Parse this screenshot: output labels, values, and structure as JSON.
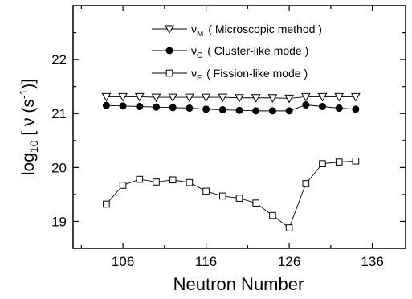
{
  "chart_data": {
    "type": "line",
    "title": "",
    "xlabel": "Neutron Number",
    "ylabel": {
      "prefix": "log",
      "sub": "10",
      "middle": " [ ν (s",
      "sup": "-1",
      "suffix": ")]"
    },
    "xlim": [
      100,
      140
    ],
    "ylim": [
      18.5,
      23.0
    ],
    "xticks": [
      106,
      116,
      126,
      136
    ],
    "yticks": [
      19,
      20,
      21,
      22
    ],
    "grid": false,
    "legend_position": "top-right",
    "x": [
      104,
      106,
      108,
      110,
      112,
      114,
      116,
      118,
      120,
      122,
      124,
      126,
      128,
      130,
      132,
      134
    ],
    "series": [
      {
        "key": "nu_M",
        "symbol": "ν",
        "sub": "M",
        "name": "( Microscopic method )",
        "marker": "triangle-down-open",
        "values": [
          21.31,
          21.31,
          21.31,
          21.3,
          21.3,
          21.3,
          21.3,
          21.3,
          21.29,
          21.29,
          21.29,
          21.28,
          21.31,
          21.31,
          21.31,
          21.31
        ]
      },
      {
        "key": "nu_C",
        "symbol": "ν",
        "sub": "C",
        "name": "( Cluster-like mode )",
        "marker": "circle-filled",
        "values": [
          21.15,
          21.14,
          21.13,
          21.12,
          21.11,
          21.1,
          21.08,
          21.07,
          21.06,
          21.05,
          21.05,
          21.05,
          21.16,
          21.13,
          21.1,
          21.08
        ]
      },
      {
        "key": "nu_F",
        "symbol": "ν",
        "sub": "F",
        "name": "( Fission-like mode )",
        "marker": "square-open",
        "values": [
          19.32,
          19.67,
          19.78,
          19.73,
          19.77,
          19.72,
          19.56,
          19.47,
          19.43,
          19.34,
          19.11,
          18.88,
          19.7,
          20.07,
          20.1,
          20.12
        ]
      }
    ]
  },
  "colors": {
    "axis": "#000000",
    "series_line": "#000000",
    "background": "#ffffff"
  }
}
